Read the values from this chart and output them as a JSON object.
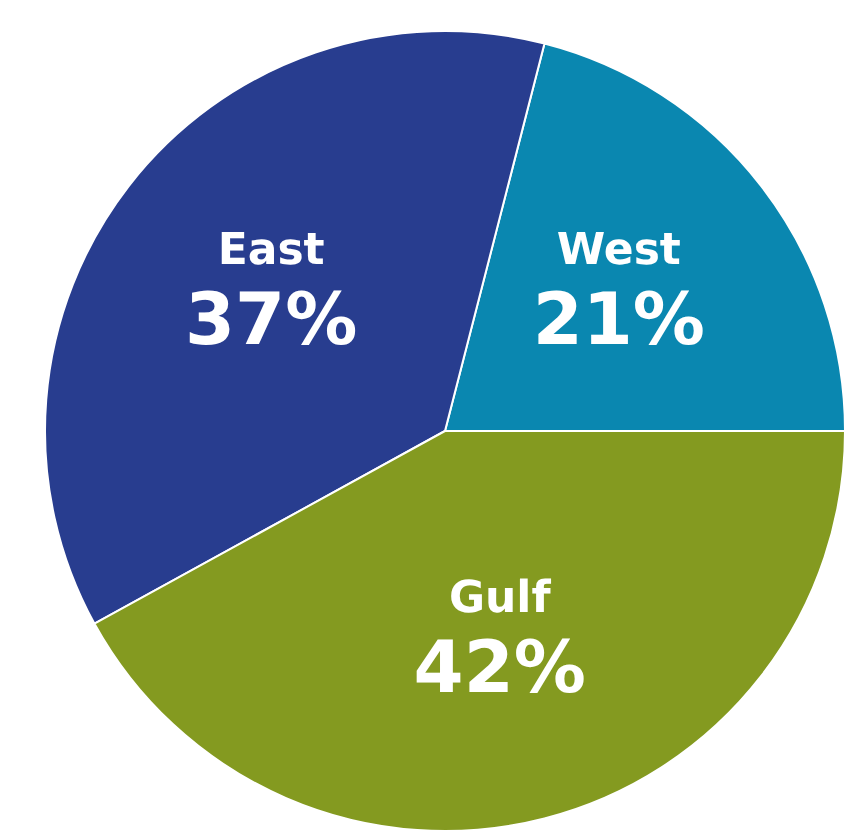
{
  "chart_data": {
    "type": "pie",
    "categories": [
      "West",
      "East",
      "Gulf"
    ],
    "values": [
      21,
      37,
      42
    ],
    "colors": [
      "#0a87b0",
      "#283d8f",
      "#849a20"
    ],
    "data_labels": true,
    "value_labels": [
      "21%",
      "37%",
      "42%"
    ]
  }
}
